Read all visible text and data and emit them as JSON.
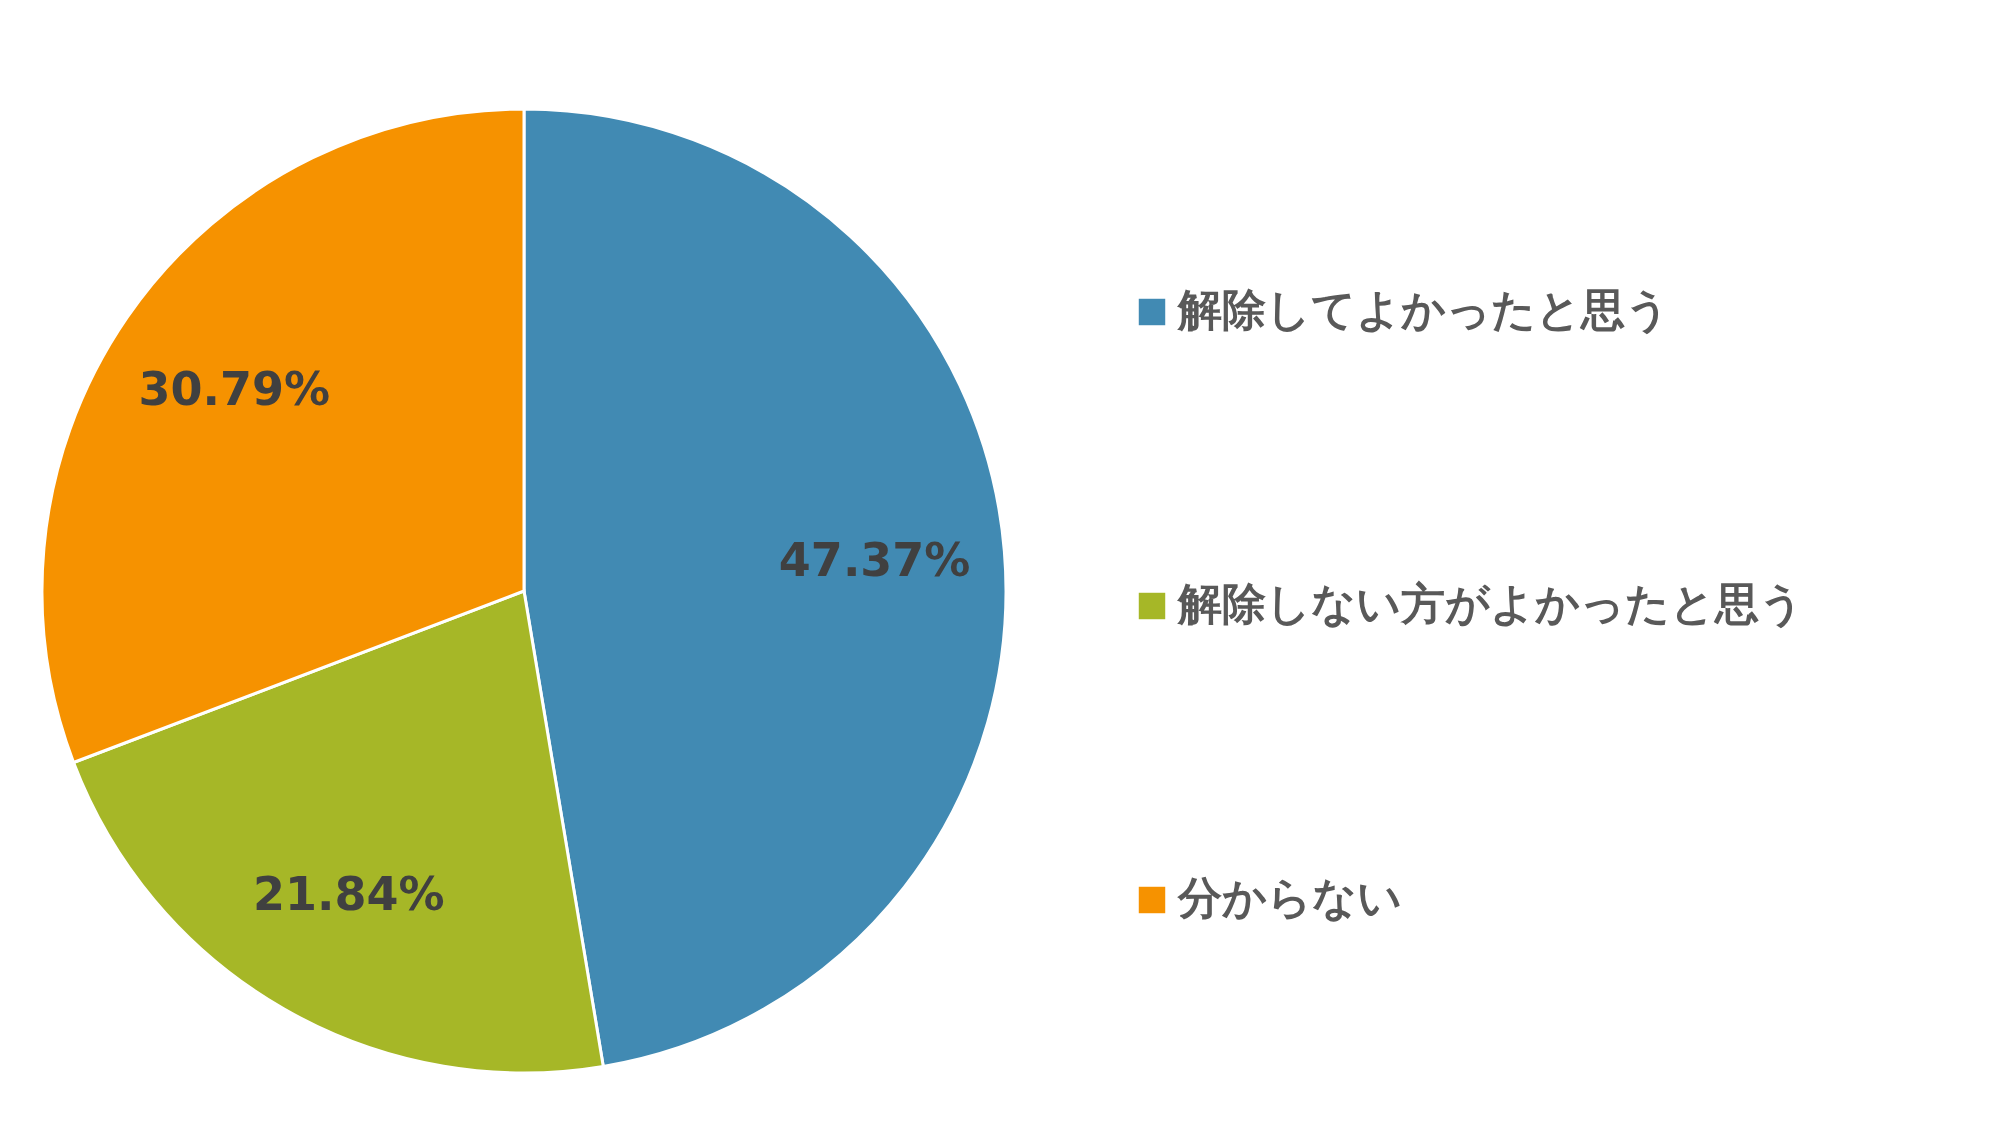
{
  "chart_data": {
    "type": "pie",
    "categories": [
      "解除してよかったと思う",
      "解除しない方がよかったと思う",
      "分からない"
    ],
    "values": [
      47.37,
      21.84,
      30.79
    ],
    "colors": [
      "#418ab3",
      "#a6b727",
      "#f69200"
    ],
    "value_labels": [
      "47.37%",
      "21.84%",
      "30.79%"
    ],
    "legend": "right"
  }
}
